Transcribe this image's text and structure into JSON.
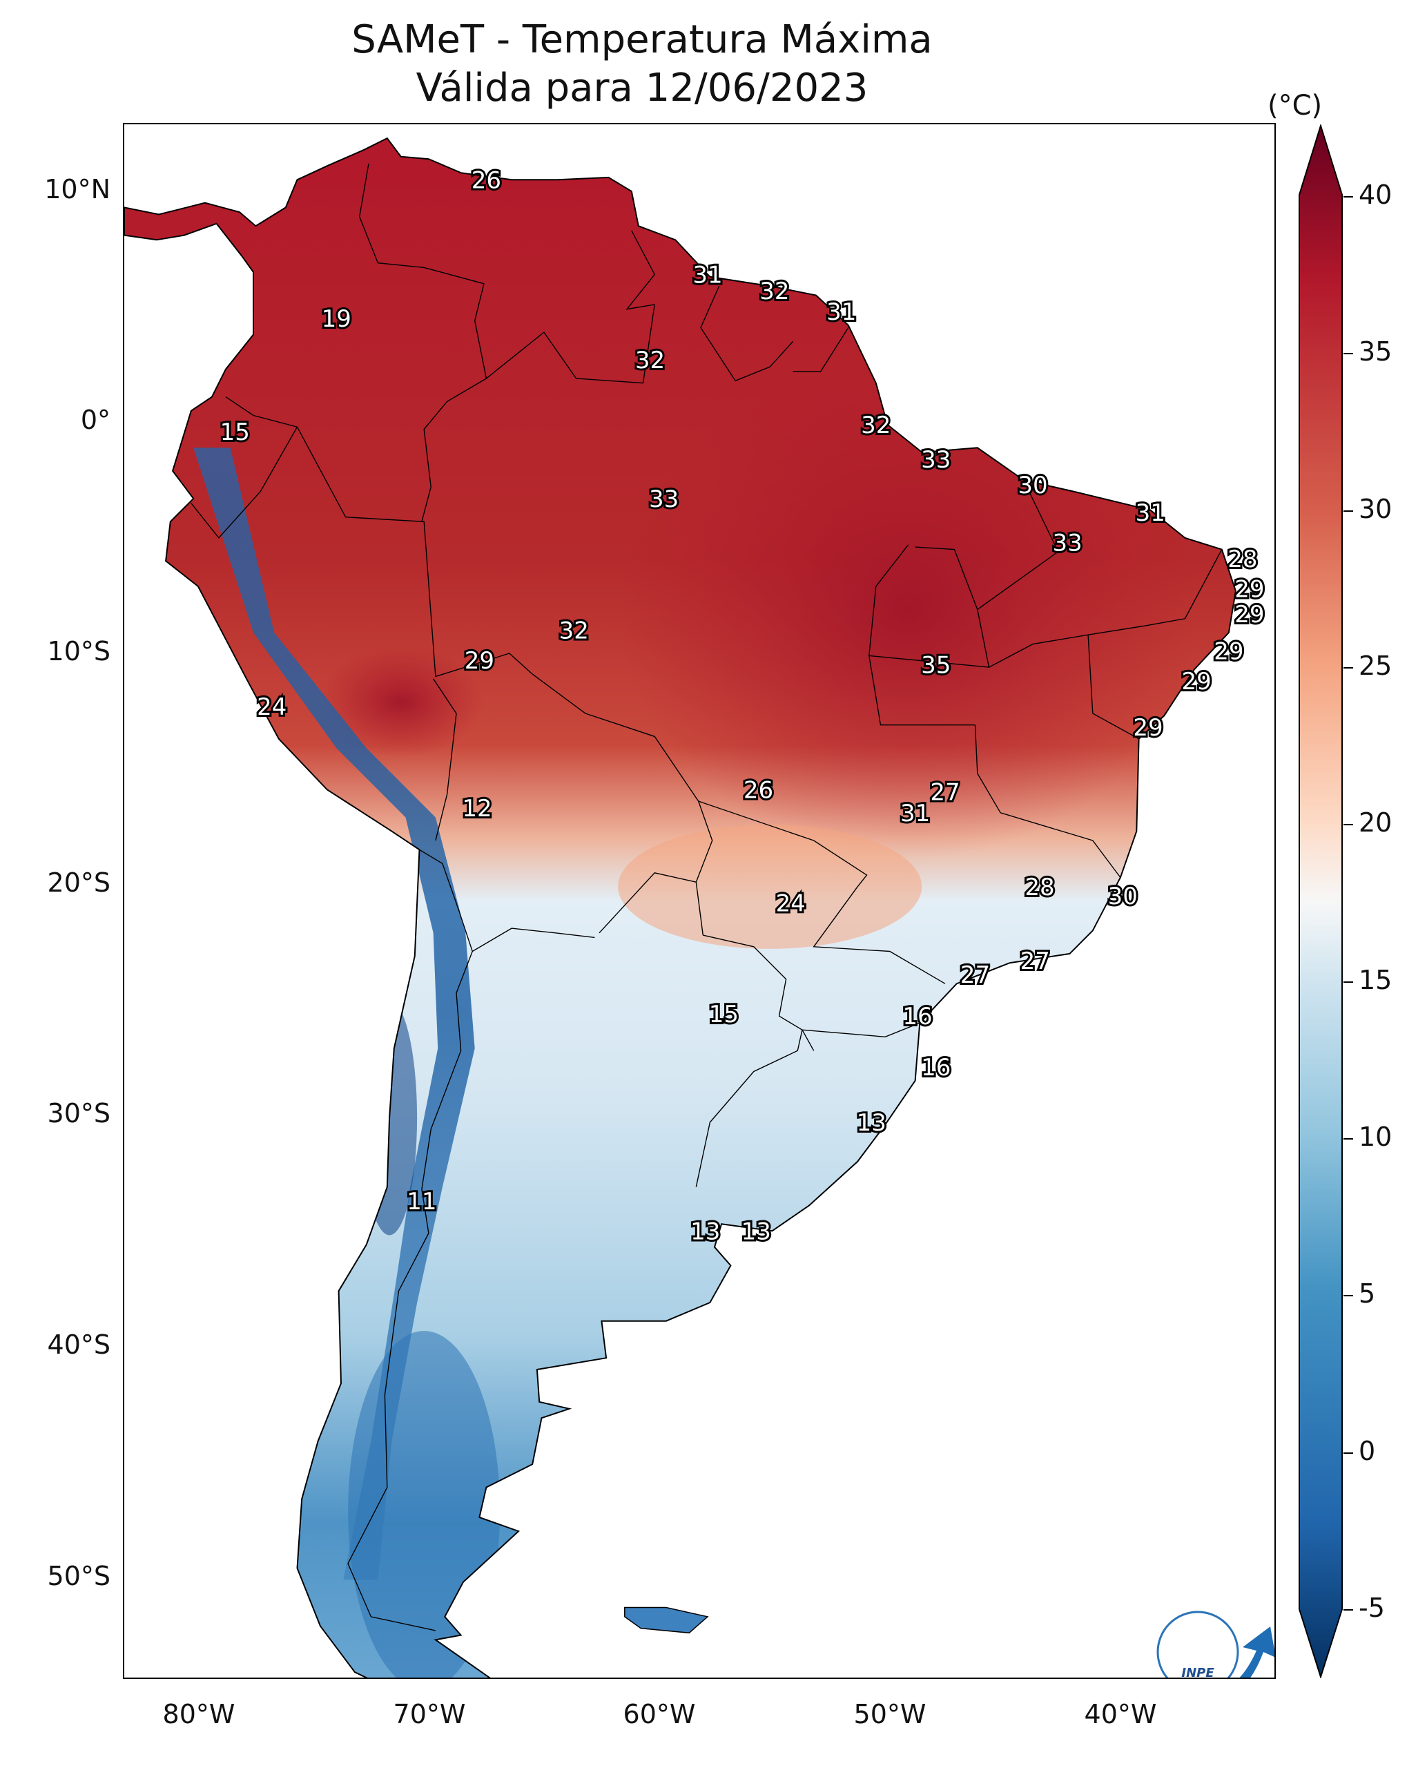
{
  "title": {
    "line1": "SAMeT - Temperatura Máxima",
    "line2": "Válida para 12/06/2023"
  },
  "axes": {
    "lat_labels": [
      "10°N",
      "0°",
      "10°S",
      "20°S",
      "30°S",
      "40°S",
      "50°S"
    ],
    "lon_labels": [
      "80°W",
      "70°W",
      "60°W",
      "50°W",
      "40°W"
    ]
  },
  "colorbar": {
    "unit": "(°C)",
    "ticks": [
      "40",
      "35",
      "30",
      "25",
      "20",
      "15",
      "10",
      "5",
      "0",
      "-5"
    ],
    "range": [
      -5,
      40
    ],
    "extend": "both",
    "colormap": "RdBu_r",
    "colors": [
      "#053061",
      "#2166ac",
      "#4393c3",
      "#92c5de",
      "#d1e5f0",
      "#f7f7f7",
      "#fddbc7",
      "#f4a582",
      "#d6604d",
      "#b2182b",
      "#67001f"
    ]
  },
  "labels": [
    {
      "text": "26",
      "lon": -67.3,
      "lat": 10.6
    },
    {
      "text": "19",
      "lon": -73.8,
      "lat": 4.6
    },
    {
      "text": "31",
      "lon": -57.7,
      "lat": 6.5
    },
    {
      "text": "32",
      "lon": -54.8,
      "lat": 5.8
    },
    {
      "text": "31",
      "lon": -51.9,
      "lat": 4.9
    },
    {
      "text": "32",
      "lon": -60.2,
      "lat": 2.8
    },
    {
      "text": "15",
      "lon": -78.2,
      "lat": -0.3
    },
    {
      "text": "32",
      "lon": -50.4,
      "lat": 0.0
    },
    {
      "text": "33",
      "lon": -47.8,
      "lat": -1.5
    },
    {
      "text": "30",
      "lon": -43.6,
      "lat": -2.6
    },
    {
      "text": "33",
      "lon": -59.6,
      "lat": -3.2
    },
    {
      "text": "31",
      "lon": -38.5,
      "lat": -3.8
    },
    {
      "text": "33",
      "lon": -42.1,
      "lat": -5.1
    },
    {
      "text": "28",
      "lon": -34.5,
      "lat": -5.8
    },
    {
      "text": "29",
      "lon": -34.2,
      "lat": -7.1
    },
    {
      "text": "29",
      "lon": -34.2,
      "lat": -8.2
    },
    {
      "text": "32",
      "lon": -63.5,
      "lat": -8.9
    },
    {
      "text": "29",
      "lon": -67.6,
      "lat": -10.2
    },
    {
      "text": "35",
      "lon": -47.8,
      "lat": -10.4
    },
    {
      "text": "29",
      "lon": -35.1,
      "lat": -9.8
    },
    {
      "text": "29",
      "lon": -36.5,
      "lat": -11.1
    },
    {
      "text": "24",
      "lon": -76.6,
      "lat": -12.2
    },
    {
      "text": "29",
      "lon": -38.6,
      "lat": -13.1
    },
    {
      "text": "26",
      "lon": -55.5,
      "lat": -15.8
    },
    {
      "text": "27",
      "lon": -47.4,
      "lat": -15.9
    },
    {
      "text": "31",
      "lon": -48.7,
      "lat": -16.8
    },
    {
      "text": "12",
      "lon": -67.7,
      "lat": -16.6
    },
    {
      "text": "28",
      "lon": -43.3,
      "lat": -20.0
    },
    {
      "text": "30",
      "lon": -39.7,
      "lat": -20.4
    },
    {
      "text": "24",
      "lon": -54.1,
      "lat": -20.7
    },
    {
      "text": "27",
      "lon": -46.1,
      "lat": -23.8
    },
    {
      "text": "27",
      "lon": -43.5,
      "lat": -23.2
    },
    {
      "text": "15",
      "lon": -57.0,
      "lat": -25.5
    },
    {
      "text": "16",
      "lon": -48.6,
      "lat": -25.6
    },
    {
      "text": "16",
      "lon": -47.8,
      "lat": -27.8
    },
    {
      "text": "13",
      "lon": -50.6,
      "lat": -30.2
    },
    {
      "text": "11",
      "lon": -70.1,
      "lat": -33.6
    },
    {
      "text": "13",
      "lon": -57.8,
      "lat": -34.9
    },
    {
      "text": "13",
      "lon": -55.6,
      "lat": -34.9
    }
  ],
  "logo": {
    "text": "INPE"
  }
}
